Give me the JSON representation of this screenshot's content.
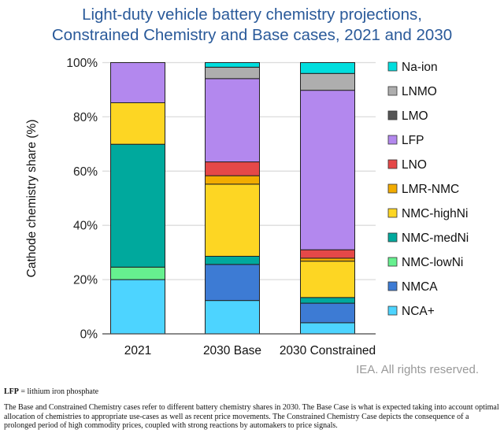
{
  "chart_data": {
    "type": "bar",
    "stacked": true,
    "title": "Light-duty vehicle battery chemistry projections,\nConstrained Chemistry and Base cases, 2021 and 2030",
    "title_lines": [
      "Light-duty vehicle battery chemistry projections,",
      "Constrained Chemistry and Base cases, 2021 and 2030"
    ],
    "xlabel": "",
    "ylabel": "Cathode chemistry share (%)",
    "ylim": [
      0,
      100
    ],
    "yticks": [
      "0%",
      "20%",
      "40%",
      "60%",
      "80%",
      "100%"
    ],
    "grid": true,
    "legend_position": "right",
    "categories": [
      "2021",
      "2030 Base",
      "2030 Constrained"
    ],
    "series": [
      {
        "name": "NCA+",
        "color": "#4dd4ff",
        "values": [
          20.0,
          12.3,
          4.1
        ]
      },
      {
        "name": "NMCA",
        "color": "#3d7bd4",
        "values": [
          0,
          13.3,
          7.2
        ]
      },
      {
        "name": "NMC-lowNi",
        "color": "#66f08f",
        "values": [
          4.6,
          0,
          0
        ]
      },
      {
        "name": "NMC-medNi",
        "color": "#00a99d",
        "values": [
          45.3,
          3.0,
          2.1
        ]
      },
      {
        "name": "NMC-highNi",
        "color": "#fdd623",
        "values": [
          15.3,
          26.6,
          13.4
        ]
      },
      {
        "name": "LMR-NMC",
        "color": "#f2ac00",
        "values": [
          0,
          3.1,
          1.1
        ]
      },
      {
        "name": "LNO",
        "color": "#e54848",
        "values": [
          0,
          5.1,
          3.1
        ]
      },
      {
        "name": "LFP",
        "color": "#b388ee",
        "values": [
          14.8,
          30.7,
          58.8
        ]
      },
      {
        "name": "LMO",
        "color": "#555555",
        "values": [
          0,
          0,
          0
        ]
      },
      {
        "name": "LNMO",
        "color": "#aeaeae",
        "values": [
          0,
          4.2,
          6.2
        ]
      },
      {
        "name": "Na-ion",
        "color": "#00dede",
        "values": [
          0,
          1.7,
          4.0
        ]
      }
    ]
  },
  "credit": "IEA. All rights reserved.",
  "notes": {
    "abbrev_term": "LFP",
    "abbrev_def": " = lithium iron phosphate",
    "body": "The Base and Constrained Chemistry cases refer to different battery chemistry shares in 2030. The Base Case is what is expected taking into account optimal allocation of chemistries to appropriate use-cases as well as recent price movements. The Constrained Chemistry Case depicts the consequence of a prolonged period of high commodity prices, coupled with strong reactions by automakers to price signals."
  }
}
